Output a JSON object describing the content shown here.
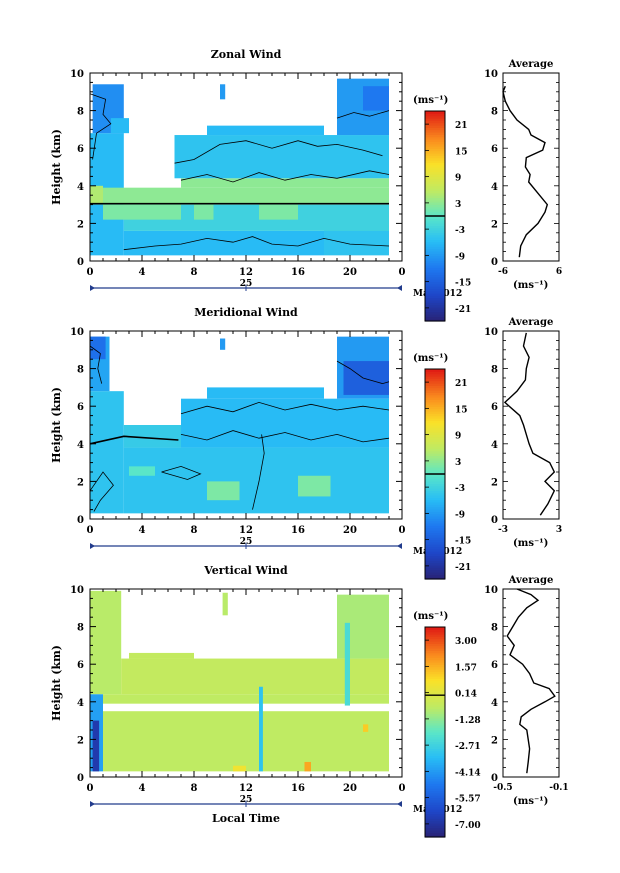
{
  "figure": {
    "month_label": "May 2012",
    "xlabel": "Local Time",
    "date_day": "25",
    "unit_label": "(ms⁻¹)",
    "avg_title": "Average",
    "ylabel": "Height (km)"
  },
  "chart_data": [
    {
      "type": "heatmap",
      "title": "Zonal Wind",
      "xlabel": "Local Time",
      "ylabel": "Height (km)",
      "xlim": [
        0,
        24
      ],
      "ylim": [
        0,
        10
      ],
      "x_ticks": [
        "0",
        "4",
        "8",
        "12",
        "16",
        "20",
        "0"
      ],
      "y_ticks": [
        "0",
        "2",
        "4",
        "6",
        "8",
        "10"
      ],
      "colorbar": {
        "label": "(ms⁻¹)",
        "ticks": [
          "21",
          "15",
          "9",
          "3",
          "-3",
          "-9",
          "-15",
          "-21"
        ],
        "range": [
          -24,
          24
        ]
      },
      "profile": {
        "title": "Average",
        "xlabel": "(ms⁻¹)",
        "xlim": [
          -6,
          6
        ],
        "x_ticks": [
          "-6",
          "6"
        ],
        "points": [
          [
            -2.5,
            0.2
          ],
          [
            -2.2,
            0.8
          ],
          [
            -1.0,
            1.4
          ],
          [
            1.5,
            2.0
          ],
          [
            3.0,
            2.6
          ],
          [
            3.5,
            3.0
          ],
          [
            1.5,
            3.6
          ],
          [
            -0.5,
            4.2
          ],
          [
            -0.2,
            4.6
          ],
          [
            -1.2,
            5.0
          ],
          [
            -1.0,
            5.5
          ],
          [
            2.5,
            5.9
          ],
          [
            3.0,
            6.3
          ],
          [
            0.0,
            6.7
          ],
          [
            -0.5,
            7.0
          ],
          [
            -3.0,
            7.5
          ],
          [
            -4.5,
            8.0
          ],
          [
            -5.5,
            8.5
          ],
          [
            -6.0,
            9.0
          ],
          [
            -5.5,
            9.3
          ]
        ]
      },
      "regions": [
        {
          "x0": 0.0,
          "x1": 2.6,
          "y0": 0.3,
          "y1": 6.8,
          "v": -6
        },
        {
          "x0": 0.2,
          "x1": 2.6,
          "y0": 6.8,
          "y1": 9.4,
          "v": -10
        },
        {
          "x0": 1.6,
          "x1": 3.0,
          "y0": 6.8,
          "y1": 7.6,
          "v": -6
        },
        {
          "x0": 0.0,
          "x1": 1.0,
          "y0": 3.0,
          "y1": 4.0,
          "v": 5
        },
        {
          "x0": 2.6,
          "x1": 18.0,
          "y0": 0.3,
          "y1": 1.6,
          "v": -6
        },
        {
          "x0": 18.0,
          "x1": 23.0,
          "y0": 0.3,
          "y1": 2.0,
          "v": -5
        },
        {
          "x0": 2.6,
          "x1": 23.0,
          "y0": 1.6,
          "y1": 3.0,
          "v": -3
        },
        {
          "x0": 1.0,
          "x1": 7.0,
          "y0": 2.2,
          "y1": 3.0,
          "v": 2
        },
        {
          "x0": 8.0,
          "x1": 9.5,
          "y0": 2.2,
          "y1": 3.0,
          "v": 2
        },
        {
          "x0": 13.0,
          "x1": 16.0,
          "y0": 2.2,
          "y1": 3.0,
          "v": 2
        },
        {
          "x0": 1.0,
          "x1": 23.0,
          "y0": 3.0,
          "y1": 3.9,
          "v": 3
        },
        {
          "x0": 7.0,
          "x1": 23.0,
          "y0": 3.9,
          "y1": 4.4,
          "v": 3
        },
        {
          "x0": 6.5,
          "x1": 23.0,
          "y0": 4.4,
          "y1": 6.7,
          "v": -5
        },
        {
          "x0": 9.0,
          "x1": 18.0,
          "y0": 6.7,
          "y1": 7.2,
          "v": -6
        },
        {
          "x0": 19.0,
          "x1": 23.0,
          "y0": 6.7,
          "y1": 9.7,
          "v": -9
        },
        {
          "x0": 21.0,
          "x1": 23.0,
          "y0": 8.0,
          "y1": 9.3,
          "v": -12
        },
        {
          "x0": 10.0,
          "x1": 10.4,
          "y0": 8.6,
          "y1": 9.4,
          "v": -9
        }
      ],
      "contours": [
        {
          "v": -3,
          "pts": [
            [
              0.0,
              8.9
            ],
            [
              1.2,
              8.6
            ],
            [
              1.0,
              7.8
            ],
            [
              1.6,
              7.3
            ],
            [
              0.5,
              6.8
            ],
            [
              0.2,
              5.4
            ]
          ]
        },
        {
          "v": -3,
          "pts": [
            [
              19.0,
              7.6
            ],
            [
              20.3,
              7.9
            ],
            [
              21.5,
              7.7
            ],
            [
              23.0,
              8.0
            ]
          ]
        },
        {
          "v": -3,
          "pts": [
            [
              2.6,
              0.6
            ],
            [
              5.0,
              0.8
            ],
            [
              7.0,
              0.9
            ],
            [
              9.0,
              1.2
            ],
            [
              11.0,
              1.0
            ],
            [
              12.5,
              1.3
            ],
            [
              14.0,
              0.9
            ],
            [
              16.0,
              0.8
            ],
            [
              18.0,
              1.2
            ],
            [
              20.0,
              0.9
            ],
            [
              23.0,
              0.8
            ]
          ]
        },
        {
          "v": -3,
          "pts": [
            [
              6.5,
              5.2
            ],
            [
              8.0,
              5.4
            ],
            [
              10.0,
              6.2
            ],
            [
              12.0,
              6.4
            ],
            [
              14.0,
              6.0
            ],
            [
              16.0,
              6.4
            ],
            [
              17.5,
              6.1
            ],
            [
              19.0,
              6.2
            ],
            [
              21.0,
              5.9
            ],
            [
              22.5,
              5.6
            ]
          ]
        },
        {
          "v": -3,
          "pts": [
            [
              7.0,
              4.3
            ],
            [
              9.0,
              4.6
            ],
            [
              11.0,
              4.2
            ],
            [
              13.0,
              4.7
            ],
            [
              15.0,
              4.3
            ],
            [
              17.0,
              4.6
            ],
            [
              19.0,
              4.4
            ],
            [
              21.5,
              4.8
            ],
            [
              23.0,
              4.6
            ]
          ]
        },
        {
          "v": 0,
          "pts": [
            [
              0.0,
              3.05
            ],
            [
              23.0,
              3.05
            ]
          ]
        }
      ]
    },
    {
      "type": "heatmap",
      "title": "Meridional Wind",
      "xlabel": "Local Time",
      "ylabel": "Height (km)",
      "xlim": [
        0,
        24
      ],
      "ylim": [
        0,
        10
      ],
      "x_ticks": [
        "0",
        "4",
        "8",
        "12",
        "16",
        "20",
        "0"
      ],
      "y_ticks": [
        "0",
        "2",
        "4",
        "6",
        "8",
        "10"
      ],
      "colorbar": {
        "label": "(ms⁻¹)",
        "ticks": [
          "21",
          "15",
          "9",
          "3",
          "-3",
          "-9",
          "-15",
          "-21"
        ],
        "range": [
          -24,
          24
        ]
      },
      "profile": {
        "title": "Average",
        "xlabel": "(ms⁻¹)",
        "xlim": [
          -3,
          3
        ],
        "x_ticks": [
          "-3",
          "3"
        ],
        "points": [
          [
            1.0,
            0.2
          ],
          [
            1.8,
            0.8
          ],
          [
            2.5,
            1.5
          ],
          [
            1.5,
            2.0
          ],
          [
            2.5,
            2.5
          ],
          [
            2.0,
            3.0
          ],
          [
            0.2,
            3.5
          ],
          [
            -0.2,
            4.0
          ],
          [
            -0.5,
            4.5
          ],
          [
            -0.8,
            5.0
          ],
          [
            -1.2,
            5.5
          ],
          [
            -2.8,
            6.2
          ],
          [
            -1.5,
            6.8
          ],
          [
            -0.6,
            7.4
          ],
          [
            -0.5,
            8.0
          ],
          [
            -0.2,
            8.6
          ],
          [
            -0.8,
            9.2
          ],
          [
            -0.5,
            9.9
          ]
        ]
      },
      "regions": [
        {
          "x0": 0.0,
          "x1": 2.6,
          "y0": 0.3,
          "y1": 6.8,
          "v": -5
        },
        {
          "x0": 0.0,
          "x1": 1.5,
          "y0": 6.8,
          "y1": 9.7,
          "v": -8
        },
        {
          "x0": 0.0,
          "x1": 1.2,
          "y0": 8.5,
          "y1": 9.7,
          "v": -13
        },
        {
          "x0": 2.6,
          "x1": 23.0,
          "y0": 0.3,
          "y1": 3.8,
          "v": -5
        },
        {
          "x0": 2.6,
          "x1": 7.0,
          "y0": 3.8,
          "y1": 5.0,
          "v": -4
        },
        {
          "x0": 7.0,
          "x1": 23.0,
          "y0": 3.8,
          "y1": 6.4,
          "v": -6
        },
        {
          "x0": 9.0,
          "x1": 18.0,
          "y0": 6.4,
          "y1": 7.0,
          "v": -6
        },
        {
          "x0": 19.0,
          "x1": 23.0,
          "y0": 6.4,
          "y1": 9.7,
          "v": -9
        },
        {
          "x0": 19.5,
          "x1": 23.0,
          "y0": 6.6,
          "y1": 8.4,
          "v": -15
        },
        {
          "x0": 9.0,
          "x1": 11.5,
          "y0": 1.0,
          "y1": 2.0,
          "v": 2
        },
        {
          "x0": 16.0,
          "x1": 18.5,
          "y0": 1.2,
          "y1": 2.3,
          "v": 2
        },
        {
          "x0": 3.0,
          "x1": 5.0,
          "y0": 2.3,
          "y1": 2.8,
          "v": 0
        },
        {
          "x0": 10.0,
          "x1": 10.4,
          "y0": 9.0,
          "y1": 9.6,
          "v": -9
        }
      ],
      "contours": [
        {
          "v": -3,
          "pts": [
            [
              0.0,
              9.2
            ],
            [
              0.8,
              8.8
            ],
            [
              0.6,
              8.0
            ],
            [
              0.9,
              7.2
            ]
          ]
        },
        {
          "v": -3,
          "pts": [
            [
              19.0,
              8.4
            ],
            [
              20.0,
              8.0
            ],
            [
              21.0,
              7.5
            ],
            [
              22.5,
              7.2
            ],
            [
              23.0,
              7.3
            ]
          ]
        },
        {
          "v": -3,
          "pts": [
            [
              7.0,
              5.6
            ],
            [
              9.0,
              6.0
            ],
            [
              11.0,
              5.7
            ],
            [
              13.0,
              6.2
            ],
            [
              15.0,
              5.8
            ],
            [
              17.0,
              6.1
            ],
            [
              19.0,
              5.8
            ],
            [
              21.0,
              6.0
            ],
            [
              23.0,
              5.8
            ]
          ]
        },
        {
          "v": -3,
          "pts": [
            [
              7.0,
              4.5
            ],
            [
              9.0,
              4.2
            ],
            [
              11.0,
              4.7
            ],
            [
              13.0,
              4.3
            ],
            [
              15.0,
              4.6
            ],
            [
              17.0,
              4.2
            ],
            [
              19.0,
              4.5
            ],
            [
              21.0,
              4.1
            ],
            [
              23.0,
              4.3
            ]
          ]
        },
        {
          "v": -3,
          "pts": [
            [
              0.0,
              1.5
            ],
            [
              1.0,
              2.5
            ],
            [
              1.8,
              1.8
            ],
            [
              0.8,
              1.0
            ],
            [
              0.3,
              0.4
            ]
          ]
        },
        {
          "v": -3,
          "pts": [
            [
              5.5,
              2.5
            ],
            [
              7.0,
              2.8
            ],
            [
              8.5,
              2.4
            ],
            [
              7.5,
              2.1
            ],
            [
              5.5,
              2.5
            ]
          ]
        },
        {
          "v": -3,
          "pts": [
            [
              12.5,
              0.5
            ],
            [
              13.0,
              2.0
            ],
            [
              13.4,
              3.5
            ],
            [
              13.2,
              4.5
            ]
          ]
        },
        {
          "v": 0,
          "pts": [
            [
              0.0,
              4.0
            ],
            [
              2.6,
              4.4
            ],
            [
              6.8,
              4.2
            ]
          ]
        }
      ]
    },
    {
      "type": "heatmap",
      "title": "Vertical Wind",
      "xlabel": "Local Time",
      "ylabel": "Height (km)",
      "xlim": [
        0,
        24
      ],
      "ylim": [
        0,
        10
      ],
      "x_ticks": [
        "0",
        "4",
        "8",
        "12",
        "16",
        "20",
        "0"
      ],
      "y_ticks": [
        "0",
        "2",
        "4",
        "6",
        "8",
        "10"
      ],
      "colorbar": {
        "label": "(ms⁻¹)",
        "ticks": [
          "3.00",
          "1.57",
          "0.14",
          "-1.28",
          "-2.71",
          "-4.14",
          "-5.57",
          "-7.00"
        ],
        "range": [
          -7.71,
          3.71
        ]
      },
      "profile": {
        "title": "Average",
        "xlabel": "(ms⁻¹)",
        "xlim": [
          -0.5,
          -0.1
        ],
        "x_ticks": [
          "-0.5",
          "-0.1"
        ],
        "points": [
          [
            -0.33,
            0.2
          ],
          [
            -0.32,
            0.8
          ],
          [
            -0.31,
            1.5
          ],
          [
            -0.32,
            2.0
          ],
          [
            -0.33,
            2.5
          ],
          [
            -0.38,
            2.8
          ],
          [
            -0.37,
            3.2
          ],
          [
            -0.3,
            3.6
          ],
          [
            -0.2,
            4.0
          ],
          [
            -0.13,
            4.3
          ],
          [
            -0.17,
            4.7
          ],
          [
            -0.28,
            5.0
          ],
          [
            -0.31,
            5.5
          ],
          [
            -0.36,
            6.0
          ],
          [
            -0.45,
            6.5
          ],
          [
            -0.42,
            7.0
          ],
          [
            -0.47,
            7.5
          ],
          [
            -0.43,
            8.0
          ],
          [
            -0.39,
            8.5
          ],
          [
            -0.33,
            9.0
          ],
          [
            -0.25,
            9.4
          ],
          [
            -0.3,
            9.7
          ],
          [
            -0.4,
            10.0
          ]
        ]
      },
      "regions": [
        {
          "x0": 0.0,
          "x1": 2.4,
          "y0": 4.4,
          "y1": 9.9,
          "v": -0.7
        },
        {
          "x0": 0.0,
          "x1": 1.0,
          "y0": 0.3,
          "y1": 4.4,
          "v": -4.0
        },
        {
          "x0": 0.2,
          "x1": 0.7,
          "y0": 0.3,
          "y1": 3.0,
          "v": -6.8
        },
        {
          "x0": 1.0,
          "x1": 23.0,
          "y0": 0.3,
          "y1": 3.5,
          "v": -0.6
        },
        {
          "x0": 1.0,
          "x1": 23.0,
          "y0": 3.9,
          "y1": 4.4,
          "v": -0.6
        },
        {
          "x0": 2.4,
          "x1": 23.0,
          "y0": 4.4,
          "y1": 6.3,
          "v": -0.5
        },
        {
          "x0": 3.0,
          "x1": 8.0,
          "y0": 6.3,
          "y1": 6.6,
          "v": -0.5
        },
        {
          "x0": 19.0,
          "x1": 23.0,
          "y0": 6.3,
          "y1": 9.7,
          "v": -0.9
        },
        {
          "x0": 10.2,
          "x1": 10.6,
          "y0": 8.6,
          "y1": 9.8,
          "v": -0.7
        },
        {
          "x0": 13.0,
          "x1": 13.3,
          "y0": 0.3,
          "y1": 4.8,
          "v": -3.2
        },
        {
          "x0": 19.6,
          "x1": 20.0,
          "y0": 3.8,
          "y1": 8.2,
          "v": -2.4
        },
        {
          "x0": 16.5,
          "x1": 17.0,
          "y0": 0.3,
          "y1": 0.8,
          "v": 1.8
        },
        {
          "x0": 11.0,
          "x1": 12.0,
          "y0": 0.3,
          "y1": 0.6,
          "v": 0.6
        },
        {
          "x0": 21.0,
          "x1": 21.4,
          "y0": 2.4,
          "y1": 2.8,
          "v": 1.2
        }
      ],
      "contours": []
    }
  ]
}
